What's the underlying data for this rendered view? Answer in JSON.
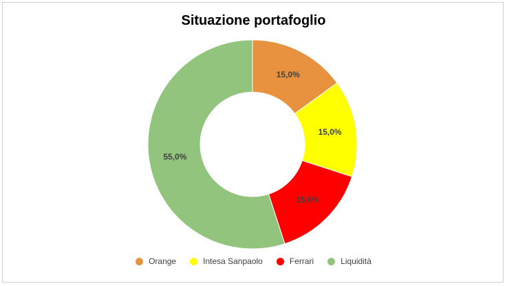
{
  "chart_data": {
    "type": "pie",
    "title": "Situazione portafoglio",
    "donut": true,
    "legend_position": "bottom",
    "categories": [
      "Orange",
      "Intesa Sanpaolo",
      "Ferrari",
      "Liquidità"
    ],
    "values": [
      15.0,
      15.0,
      15.0,
      55.0
    ],
    "labels": [
      "15,0%",
      "15,0%",
      "15,0%",
      "55,0%"
    ],
    "colors": [
      "#E8923F",
      "#FFFF00",
      "#FF0000",
      "#93C47D"
    ]
  }
}
